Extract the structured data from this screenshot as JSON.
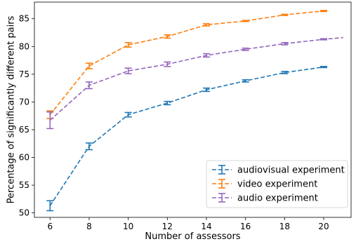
{
  "chart_data": {
    "type": "line",
    "title": "",
    "xlabel": "Number of assessors",
    "ylabel": "Percentage of significantly different pairs",
    "x_ticks": [
      6,
      8,
      10,
      12,
      14,
      16,
      18,
      20
    ],
    "y_ticks": [
      50,
      55,
      60,
      65,
      70,
      75,
      80,
      85
    ],
    "xlim": [
      5.2,
      21.4
    ],
    "ylim": [
      49.2,
      88.0
    ],
    "legend_position": "lower-right",
    "line_style": "dashed",
    "error_bars": true,
    "series": [
      {
        "name": "audiovisual experiment",
        "color": "#1f77b4",
        "x": [
          6,
          8,
          10,
          12,
          14,
          16,
          18,
          20
        ],
        "y": [
          51.3,
          62.0,
          67.7,
          69.8,
          72.2,
          73.8,
          75.3,
          76.3
        ],
        "err": [
          0.9,
          0.6,
          0.4,
          0.3,
          0.3,
          0.2,
          0.2,
          0.1
        ]
      },
      {
        "name": "video experiment",
        "color": "#ff7f0e",
        "x": [
          6,
          8,
          10,
          12,
          14,
          16,
          18,
          20
        ],
        "y": [
          67.7,
          76.5,
          80.3,
          81.8,
          83.9,
          84.6,
          85.7,
          86.4
        ],
        "err": [
          0.7,
          0.5,
          0.4,
          0.3,
          0.2,
          0.1,
          0.1,
          0.1
        ]
      },
      {
        "name": "audio experiment",
        "color": "#9467bd",
        "x": [
          6,
          8,
          10,
          12,
          14,
          16,
          18,
          20,
          21
        ],
        "y": [
          66.7,
          73.0,
          75.6,
          76.8,
          78.4,
          79.5,
          80.5,
          81.3,
          81.6
        ],
        "err": [
          1.5,
          0.6,
          0.5,
          0.4,
          0.3,
          0.2,
          0.2,
          0.1,
          0
        ]
      }
    ]
  }
}
